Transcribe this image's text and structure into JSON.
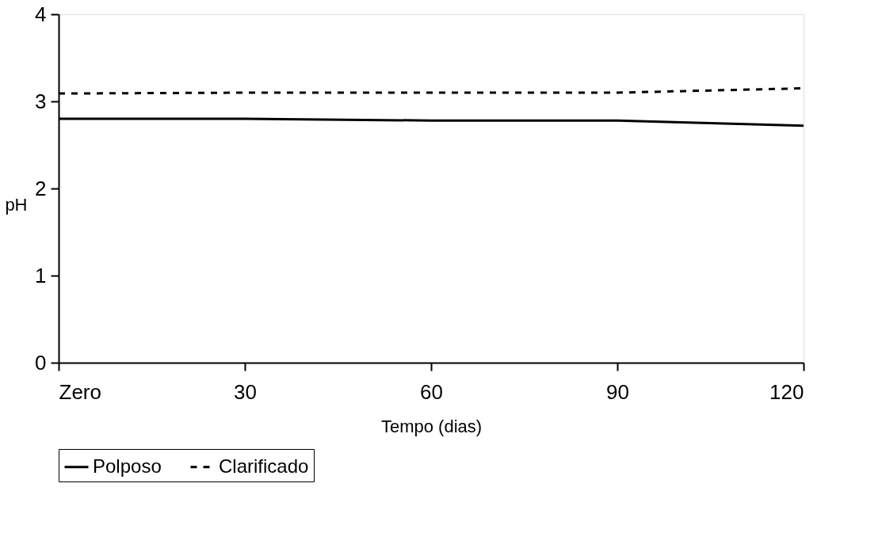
{
  "chart_data": {
    "type": "line",
    "xlabel": "Tempo (dias)",
    "ylabel": "pH",
    "categories": [
      "Zero",
      "30",
      "60",
      "90",
      "120"
    ],
    "ylim": [
      0,
      4
    ],
    "yticks": [
      0,
      1,
      2,
      3,
      4
    ],
    "grid": false,
    "legend": "bottom",
    "marker": "none",
    "series": [
      {
        "name": "Polposo",
        "color": "#000000",
        "line_style": "solid",
        "values": [
          2.8,
          2.8,
          2.78,
          2.78,
          2.72
        ]
      },
      {
        "name": "Clarificado",
        "color": "#000000",
        "line_style": "dashed",
        "values": [
          3.09,
          3.1,
          3.1,
          3.1,
          3.15
        ]
      }
    ]
  }
}
